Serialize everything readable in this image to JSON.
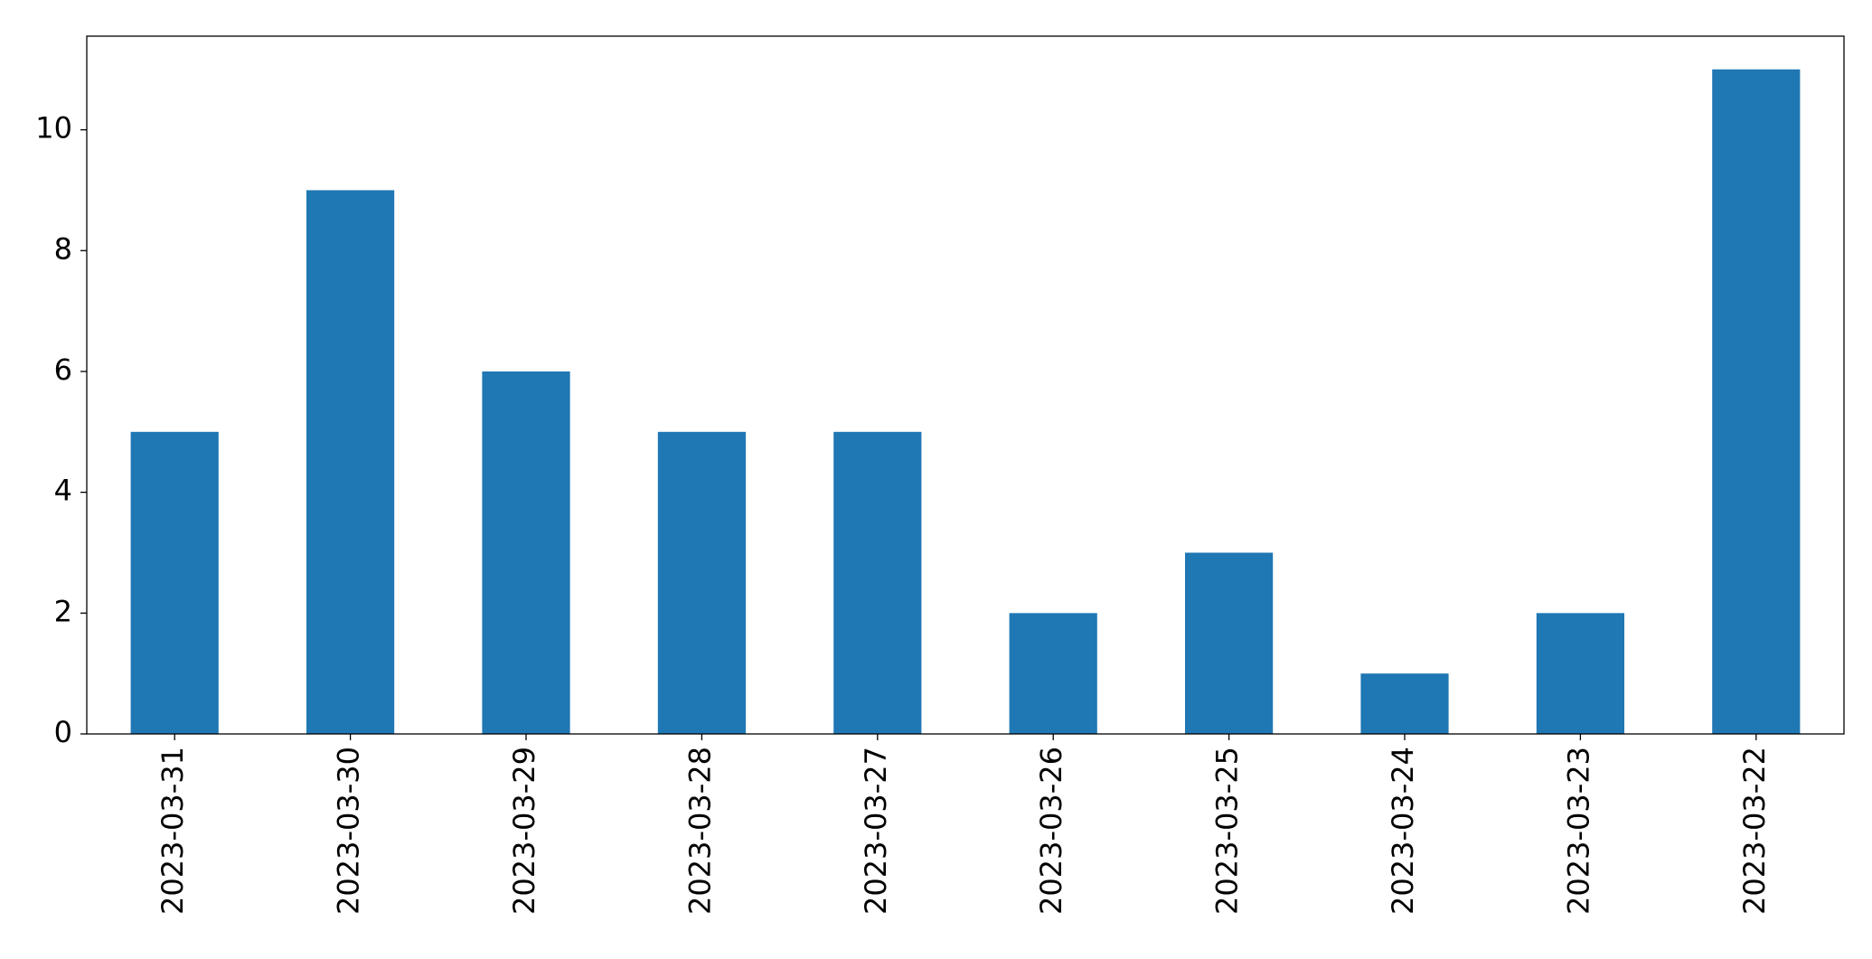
{
  "chart_data": {
    "type": "bar",
    "categories": [
      "2023-03-31",
      "2023-03-30",
      "2023-03-29",
      "2023-03-28",
      "2023-03-27",
      "2023-03-26",
      "2023-03-25",
      "2023-03-24",
      "2023-03-23",
      "2023-03-22"
    ],
    "values": [
      5,
      9,
      6,
      5,
      5,
      2,
      3,
      1,
      2,
      11
    ],
    "color": "#1f77b4",
    "ylim": [
      0,
      11.55
    ],
    "yticks": [
      0,
      2,
      4,
      6,
      8,
      10
    ],
    "grid": false
  }
}
